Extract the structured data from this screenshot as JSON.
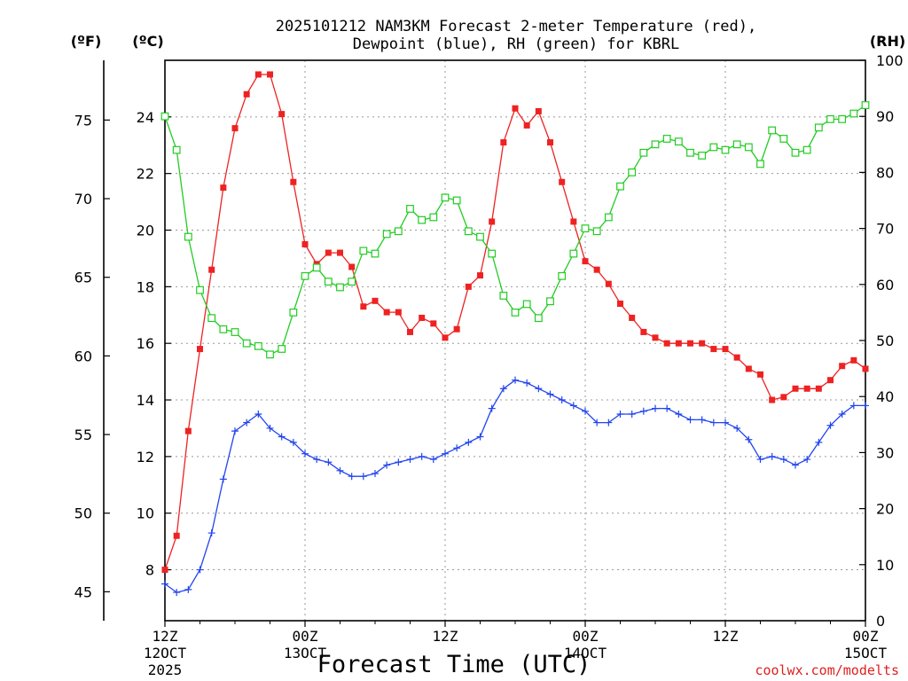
{
  "chart_data": {
    "type": "line",
    "title_line1": "2025101212 NAM3KM Forecast 2-meter Temperature (red),",
    "title_line2": "Dewpoint (blue), RH (green) for KBRL",
    "xlabel": "Forecast Time (UTC)",
    "credit": "coolwx.com/modelts",
    "grid": true,
    "unit_labels": {
      "fahrenheit": "(ºF)",
      "celsius": "(ºC)",
      "rh": "(RH)"
    },
    "x_hours_range": [
      0,
      60
    ],
    "x_ticks": [
      {
        "hour": 0,
        "line1": "12Z",
        "line2": "12OCT",
        "line3": "2025"
      },
      {
        "hour": 12,
        "line1": "00Z",
        "line2": "13OCT",
        "line3": ""
      },
      {
        "hour": 24,
        "line1": "12Z",
        "line2": "",
        "line3": ""
      },
      {
        "hour": 36,
        "line1": "00Z",
        "line2": "14OCT",
        "line3": ""
      },
      {
        "hour": 48,
        "line1": "12Z",
        "line2": "",
        "line3": ""
      },
      {
        "hour": 60,
        "line1": "00Z",
        "line2": "15OCT",
        "line3": ""
      }
    ],
    "axes": {
      "celsius": {
        "ylim": [
          6.2,
          26
        ],
        "ticks": [
          "8",
          "10",
          "12",
          "14",
          "16",
          "18",
          "20",
          "22",
          "24"
        ]
      },
      "fahrenheit": {
        "ylim": [
          43.16,
          78.8
        ],
        "ticks": [
          "45",
          "50",
          "55",
          "60",
          "65",
          "70",
          "75"
        ]
      },
      "rh": {
        "ylim": [
          0,
          100
        ],
        "ticks": [
          "0",
          "10",
          "20",
          "30",
          "40",
          "50",
          "60",
          "70",
          "80",
          "90",
          "100"
        ]
      }
    },
    "hours": [
      0,
      1,
      2,
      3,
      4,
      5,
      6,
      7,
      8,
      9,
      10,
      11,
      12,
      13,
      14,
      15,
      16,
      17,
      18,
      19,
      20,
      21,
      22,
      23,
      24,
      25,
      26,
      27,
      28,
      29,
      30,
      31,
      32,
      33,
      34,
      35,
      36,
      37,
      38,
      39,
      40,
      41,
      42,
      43,
      44,
      45,
      46,
      47,
      48,
      49,
      50,
      51,
      52,
      53,
      54,
      55,
      56,
      57,
      58,
      59,
      60
    ],
    "series": [
      {
        "name": "2-meter Temperature",
        "unit": "C",
        "color": "#ee2222",
        "marker": "filled-square",
        "values": [
          8.0,
          9.2,
          12.9,
          15.8,
          18.6,
          21.5,
          23.6,
          24.8,
          25.5,
          25.5,
          24.1,
          21.7,
          19.5,
          18.8,
          19.2,
          19.2,
          18.7,
          17.3,
          17.5,
          17.1,
          17.1,
          16.4,
          16.9,
          16.7,
          16.2,
          16.5,
          18.0,
          18.4,
          20.3,
          23.1,
          24.3,
          23.7,
          24.2,
          23.1,
          21.7,
          20.3,
          18.9,
          18.6,
          18.1,
          17.4,
          16.9,
          16.4,
          16.2,
          16.0,
          16.0,
          16.0,
          16.0,
          15.8,
          15.8,
          15.5,
          15.1,
          14.9,
          14.0,
          14.1,
          14.4,
          14.4,
          14.4,
          14.7,
          15.2,
          15.4,
          15.1
        ]
      },
      {
        "name": "Dewpoint",
        "unit": "C",
        "color": "#2244ee",
        "marker": "plus",
        "values": [
          7.5,
          7.2,
          7.3,
          8.0,
          9.3,
          11.2,
          12.9,
          13.2,
          13.5,
          13.0,
          12.7,
          12.5,
          12.1,
          11.9,
          11.8,
          11.5,
          11.3,
          11.3,
          11.4,
          11.7,
          11.8,
          11.9,
          12.0,
          11.9,
          12.1,
          12.3,
          12.5,
          12.7,
          13.7,
          14.4,
          14.7,
          14.6,
          14.4,
          14.2,
          14.0,
          13.8,
          13.6,
          13.2,
          13.2,
          13.5,
          13.5,
          13.6,
          13.7,
          13.7,
          13.5,
          13.3,
          13.3,
          13.2,
          13.2,
          13.0,
          12.6,
          11.9,
          12.0,
          11.9,
          11.7,
          11.9,
          12.5,
          13.1,
          13.5,
          13.8,
          13.8
        ]
      },
      {
        "name": "RH",
        "unit": "%",
        "color": "#22cc22",
        "marker": "open-square",
        "values": [
          90.0,
          84.0,
          68.5,
          59.0,
          54.0,
          52.0,
          51.5,
          49.5,
          49.0,
          47.5,
          48.5,
          55.0,
          61.5,
          63.0,
          60.5,
          59.5,
          60.5,
          66.0,
          65.5,
          69.0,
          69.5,
          73.5,
          71.5,
          72.0,
          75.5,
          75.0,
          69.5,
          68.5,
          65.5,
          58.0,
          55.0,
          56.5,
          54.0,
          57.0,
          61.5,
          65.5,
          70.0,
          69.5,
          72.0,
          77.5,
          80.0,
          83.5,
          85.0,
          86.0,
          85.5,
          83.5,
          83.0,
          84.5,
          84.0,
          85.0,
          84.5,
          81.5,
          87.5,
          86.0,
          83.5,
          84.0,
          88.0,
          89.5,
          89.5,
          90.5,
          92.0
        ]
      }
    ]
  }
}
